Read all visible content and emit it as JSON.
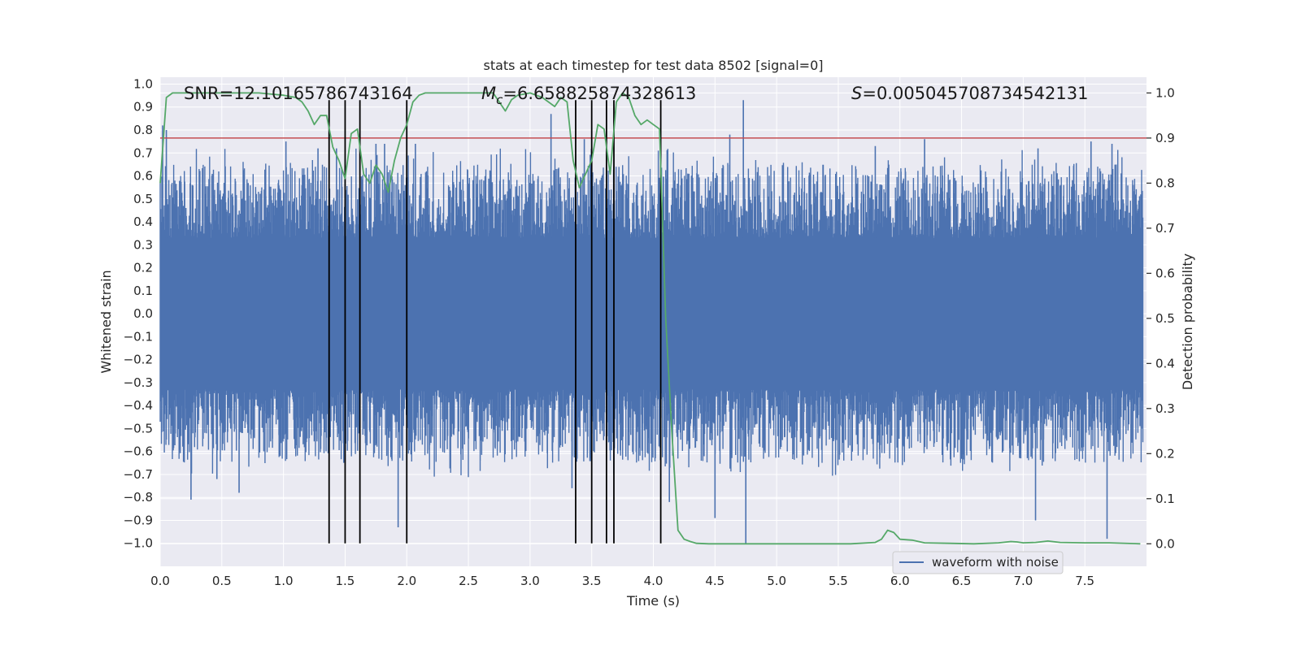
{
  "chart_data": {
    "type": "line",
    "title": "stats at each timestep for test data 8502 [signal=0]",
    "xlabel": "Time (s)",
    "ylabel_left": "Whitened strain",
    "ylabel_right": "Detection probability",
    "xlim": [
      0.0,
      8.0
    ],
    "ylim_left": [
      -1.1,
      1.03
    ],
    "ylim_right": [
      -0.05,
      1.035
    ],
    "x_ticks": [
      "0.0",
      "0.5",
      "1.0",
      "1.5",
      "2.0",
      "2.5",
      "3.0",
      "3.5",
      "4.0",
      "4.5",
      "5.0",
      "5.5",
      "6.0",
      "6.5",
      "7.0",
      "7.5"
    ],
    "x_tick_values": [
      0.0,
      0.5,
      1.0,
      1.5,
      2.0,
      2.5,
      3.0,
      3.5,
      4.0,
      4.5,
      5.0,
      5.5,
      6.0,
      6.5,
      7.0,
      7.5
    ],
    "y_left_ticks": [
      "1.0",
      "0.9",
      "0.8",
      "0.7",
      "0.6",
      "0.5",
      "0.4",
      "0.3",
      "0.2",
      "0.1",
      "0.0",
      "−0.1",
      "−0.2",
      "−0.3",
      "−0.4",
      "−0.5",
      "−0.6",
      "−0.7",
      "−0.8",
      "−0.9",
      "−1.0"
    ],
    "y_left_tick_values": [
      1.0,
      0.9,
      0.8,
      0.7,
      0.6,
      0.5,
      0.4,
      0.3,
      0.2,
      0.1,
      0.0,
      -0.1,
      -0.2,
      -0.3,
      -0.4,
      -0.5,
      -0.6,
      -0.7,
      -0.8,
      -0.9,
      -1.0
    ],
    "y_right_ticks": [
      "1.0",
      "0.9",
      "0.8",
      "0.7",
      "0.6",
      "0.5",
      "0.4",
      "0.3",
      "0.2",
      "0.1",
      "0.0"
    ],
    "y_right_tick_values": [
      1.0,
      0.9,
      0.8,
      0.7,
      0.6,
      0.5,
      0.4,
      0.3,
      0.2,
      0.1,
      0.0
    ],
    "annotations": {
      "snr": "SNR=12.10165786743164",
      "mc_symbol": "M",
      "mc_sub": "c",
      "mc_value": "=6.658825874328613",
      "s_symbol": "S",
      "s_value": "=0.005045708734542131"
    },
    "legend": {
      "label": "waveform with noise",
      "location": "lower-right"
    },
    "threshold": {
      "value": 0.9,
      "axis": "right",
      "color": "#c44e52"
    },
    "vertical_markers": [
      1.37,
      1.5,
      1.62,
      2.0,
      3.37,
      3.5,
      3.62,
      3.68,
      4.06
    ],
    "marker_range_left": [
      -1.0,
      0.93
    ],
    "waveform": {
      "name": "waveform with noise",
      "color": "#4c72b0",
      "core_amplitude": 0.33,
      "typical_peak": 0.5,
      "spikes": [
        {
          "t": 0.02,
          "v": 0.82
        },
        {
          "t": 0.05,
          "v": 0.8
        },
        {
          "t": 0.25,
          "v": -0.81
        },
        {
          "t": 0.46,
          "v": -0.72
        },
        {
          "t": 0.64,
          "v": -0.78
        },
        {
          "t": 1.02,
          "v": 0.75
        },
        {
          "t": 1.28,
          "v": 0.72
        },
        {
          "t": 1.43,
          "v": 0.72
        },
        {
          "t": 1.75,
          "v": 0.74
        },
        {
          "t": 1.82,
          "v": 0.74
        },
        {
          "t": 1.93,
          "v": -0.93
        },
        {
          "t": 2.07,
          "v": 0.74
        },
        {
          "t": 3.17,
          "v": 0.87
        },
        {
          "t": 3.34,
          "v": -0.76
        },
        {
          "t": 3.44,
          "v": 0.76
        },
        {
          "t": 4.13,
          "v": -0.82
        },
        {
          "t": 4.5,
          "v": -0.89
        },
        {
          "t": 4.62,
          "v": 0.78
        },
        {
          "t": 4.73,
          "v": 0.93
        },
        {
          "t": 4.75,
          "v": -1.0
        },
        {
          "t": 5.8,
          "v": 0.73
        },
        {
          "t": 6.2,
          "v": 0.76
        },
        {
          "t": 6.98,
          "v": -0.63
        },
        {
          "t": 7.1,
          "v": -0.9
        },
        {
          "t": 7.12,
          "v": 0.72
        },
        {
          "t": 7.55,
          "v": 0.75
        },
        {
          "t": 7.68,
          "v": -0.98
        },
        {
          "t": 7.72,
          "v": 0.74
        }
      ]
    },
    "probability": {
      "name": "detection probability",
      "color": "#55a868",
      "x": [
        0.0,
        0.05,
        0.1,
        0.2,
        0.4,
        0.6,
        0.8,
        1.0,
        1.1,
        1.15,
        1.2,
        1.25,
        1.3,
        1.35,
        1.4,
        1.45,
        1.5,
        1.55,
        1.6,
        1.65,
        1.7,
        1.75,
        1.8,
        1.85,
        1.9,
        1.95,
        2.0,
        2.05,
        2.1,
        2.15,
        2.2,
        2.3,
        2.5,
        2.7,
        2.75,
        2.8,
        2.85,
        2.9,
        3.0,
        3.1,
        3.2,
        3.25,
        3.3,
        3.35,
        3.4,
        3.45,
        3.5,
        3.55,
        3.6,
        3.65,
        3.7,
        3.75,
        3.8,
        3.85,
        3.9,
        3.95,
        4.0,
        4.05,
        4.1,
        4.15,
        4.2,
        4.25,
        4.3,
        4.35,
        4.45,
        4.6,
        4.8,
        5.0,
        5.2,
        5.4,
        5.6,
        5.8,
        5.85,
        5.9,
        5.95,
        6.0,
        6.1,
        6.2,
        6.4,
        6.6,
        6.8,
        6.9,
        6.95,
        7.0,
        7.1,
        7.2,
        7.3,
        7.5,
        7.7,
        7.95
      ],
      "y": [
        0.8,
        0.99,
        1.0,
        1.0,
        1.0,
        1.0,
        1.0,
        0.995,
        0.99,
        0.98,
        0.96,
        0.93,
        0.95,
        0.95,
        0.88,
        0.85,
        0.81,
        0.91,
        0.92,
        0.82,
        0.8,
        0.84,
        0.82,
        0.78,
        0.85,
        0.9,
        0.93,
        0.98,
        0.995,
        1.0,
        1.0,
        1.0,
        1.0,
        1.0,
        0.98,
        0.96,
        0.985,
        0.995,
        1.0,
        0.99,
        0.97,
        0.99,
        0.98,
        0.85,
        0.79,
        0.82,
        0.85,
        0.93,
        0.92,
        0.82,
        0.98,
        1.0,
        0.99,
        0.95,
        0.93,
        0.94,
        0.93,
        0.92,
        0.5,
        0.25,
        0.03,
        0.01,
        0.005,
        0.001,
        0.0,
        0.0,
        0.0,
        0.0,
        0.0,
        0.0,
        0.0,
        0.003,
        0.01,
        0.03,
        0.025,
        0.01,
        0.008,
        0.002,
        0.001,
        0.0,
        0.002,
        0.005,
        0.004,
        0.002,
        0.003,
        0.006,
        0.003,
        0.002,
        0.002,
        0.0
      ]
    }
  }
}
